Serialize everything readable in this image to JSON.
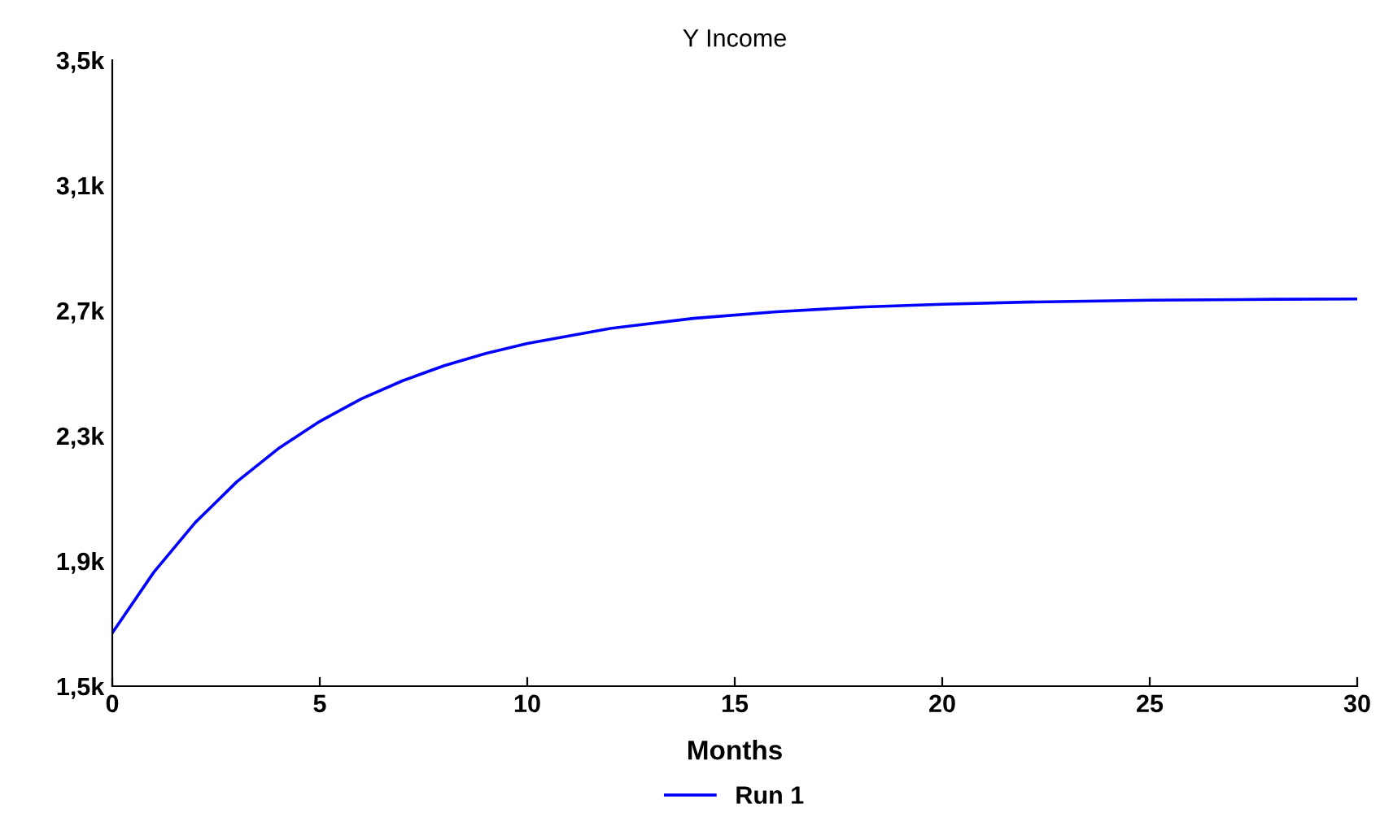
{
  "chart_data": {
    "type": "line",
    "title": "Y Income",
    "xlabel": "Months",
    "x": [
      0,
      1,
      2,
      3,
      4,
      5,
      6,
      7,
      8,
      9,
      10,
      12,
      14,
      16,
      18,
      20,
      22,
      25,
      28,
      30
    ],
    "series": [
      {
        "name": "Run 1",
        "color": "#0000ff",
        "values": [
          1670,
          1864,
          2023,
          2153,
          2259,
          2346,
          2418,
          2476,
          2524,
          2563,
          2595,
          2643,
          2675,
          2696,
          2711,
          2720,
          2727,
          2733,
          2736,
          2737
        ]
      }
    ],
    "xlim": [
      0,
      30
    ],
    "xticks": [
      0,
      5,
      10,
      15,
      20,
      25,
      30
    ],
    "ylim": [
      1500,
      3500
    ],
    "yticks": [
      {
        "value": 1500,
        "label": "1,5k"
      },
      {
        "value": 1900,
        "label": "1,9k"
      },
      {
        "value": 2300,
        "label": "2,3k"
      },
      {
        "value": 2700,
        "label": "2,7k"
      },
      {
        "value": 3100,
        "label": "3,1k"
      },
      {
        "value": 3500,
        "label": "3,5k"
      }
    ],
    "grid": false,
    "legend": "bottom",
    "marker": "none",
    "line_style": "solid"
  }
}
